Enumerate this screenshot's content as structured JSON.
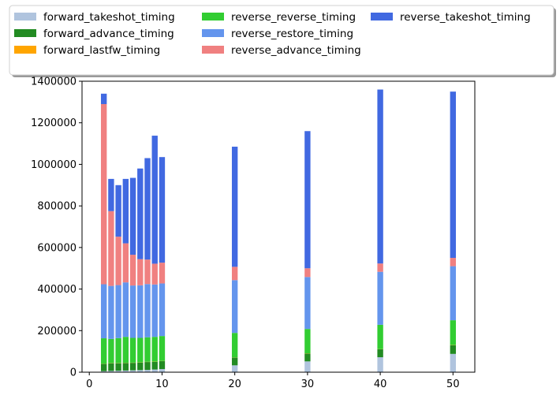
{
  "chart_data": {
    "type": "bar",
    "stacked": true,
    "title": "",
    "xlabel": "",
    "ylabel": "",
    "xlim": [
      -1,
      53
    ],
    "ylim": [
      0,
      1400000
    ],
    "xticks": [
      0,
      10,
      20,
      30,
      40,
      50
    ],
    "yticks": [
      0,
      200000,
      400000,
      600000,
      800000,
      1000000,
      1200000,
      1400000
    ],
    "grid": false,
    "legend_placement": "top-outside",
    "legend_columns": 3,
    "bar_width": 0.8,
    "x": [
      2,
      3,
      4,
      5,
      6,
      7,
      8,
      9,
      10,
      20,
      30,
      40,
      50
    ],
    "series": [
      {
        "name": "forward_takeshot_timing",
        "color": "#b0c4de",
        "values": [
          5000,
          6000,
          7000,
          8000,
          9000,
          10000,
          11000,
          13000,
          15000,
          33000,
          52000,
          72000,
          88000
        ]
      },
      {
        "name": "forward_advance_timing",
        "color": "#228b22",
        "values": [
          35000,
          37000,
          36000,
          36000,
          36000,
          36000,
          38000,
          37000,
          38000,
          37000,
          38000,
          38000,
          42000
        ]
      },
      {
        "name": "forward_lastfw_timing",
        "color": "#ffa500",
        "values": [
          1000,
          1000,
          1000,
          1000,
          1000,
          1000,
          1000,
          1000,
          1000,
          1000,
          1000,
          1000,
          1000
        ]
      },
      {
        "name": "reverse_reverse_timing",
        "color": "#32cd32",
        "values": [
          122000,
          116000,
          120000,
          125000,
          119000,
          118000,
          118000,
          119000,
          120000,
          118000,
          117000,
          117000,
          119000
        ]
      },
      {
        "name": "reverse_restore_timing",
        "color": "#6495ed",
        "values": [
          260000,
          255000,
          255000,
          262000,
          252000,
          253000,
          256000,
          252000,
          253000,
          254000,
          250000,
          255000,
          260000
        ]
      },
      {
        "name": "reverse_advance_timing",
        "color": "#f08080",
        "values": [
          867000,
          360000,
          233000,
          188000,
          148000,
          126000,
          118000,
          100000,
          100000,
          64000,
          42000,
          40000,
          40000
        ]
      },
      {
        "name": "reverse_takeshot_timing",
        "color": "#4169e1",
        "values": [
          50000,
          155000,
          248000,
          310000,
          370000,
          436000,
          488000,
          616000,
          508000,
          578000,
          660000,
          837000,
          800000
        ]
      }
    ]
  }
}
